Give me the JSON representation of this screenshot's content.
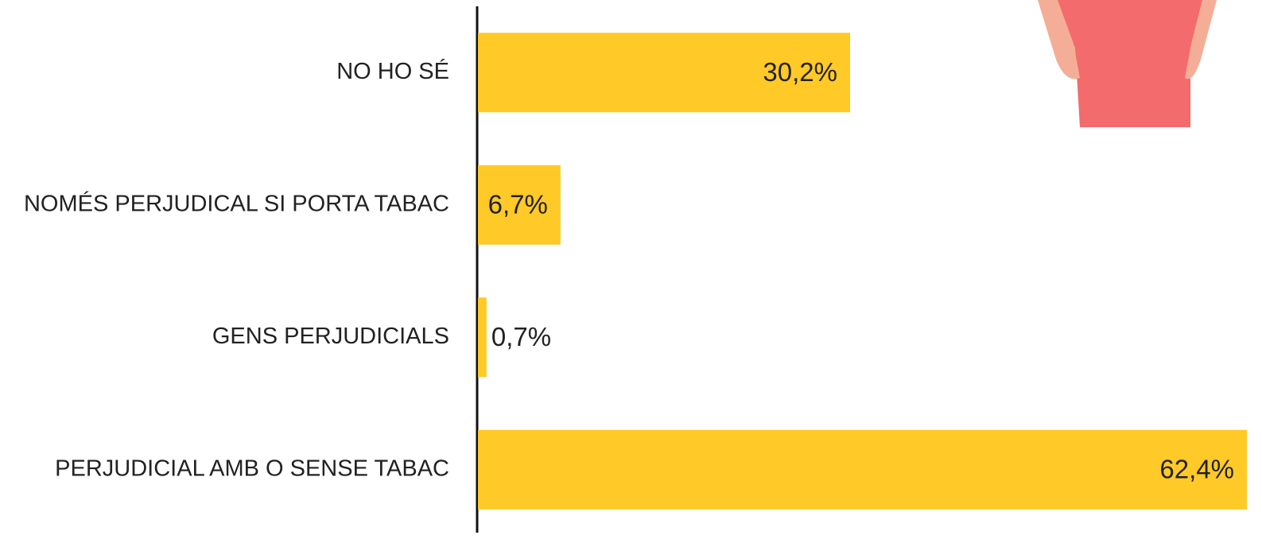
{
  "chart_data": {
    "type": "bar",
    "orientation": "horizontal",
    "categories": [
      "NO HO SÉ",
      "NOMÉS PERJUDICAL SI PORTA TABAC",
      "GENS PERJUDICIALS",
      "PERJUDICIAL AMB O SENSE TABAC"
    ],
    "values": [
      30.2,
      6.7,
      0.7,
      62.4
    ],
    "value_labels": [
      "30,2%",
      "6,7%",
      "0,7%",
      "62,4%"
    ],
    "color": "#ffc928"
  }
}
